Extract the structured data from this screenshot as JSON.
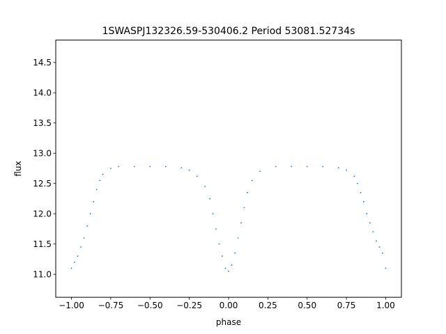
{
  "chart_data": {
    "type": "scatter",
    "title": "1SWASPJ132326.59-530406.2 Period 53081.52734s",
    "xlabel": "phase",
    "ylabel": "flux",
    "xlim": [
      -1.1,
      1.1
    ],
    "ylim": [
      10.62,
      14.87
    ],
    "x_ticks": [
      {
        "value": -1.0,
        "label": "−1.00"
      },
      {
        "value": -0.75,
        "label": "−0.75"
      },
      {
        "value": -0.5,
        "label": "−0.50"
      },
      {
        "value": -0.25,
        "label": "−0.25"
      },
      {
        "value": 0.0,
        "label": "0.00"
      },
      {
        "value": 0.25,
        "label": "0.25"
      },
      {
        "value": 0.5,
        "label": "0.50"
      },
      {
        "value": 0.75,
        "label": "0.75"
      },
      {
        "value": 1.0,
        "label": "1.00"
      }
    ],
    "y_ticks": [
      {
        "value": 11.0,
        "label": "11.0"
      },
      {
        "value": 11.5,
        "label": "11.5"
      },
      {
        "value": 12.0,
        "label": "12.0"
      },
      {
        "value": 12.5,
        "label": "12.5"
      },
      {
        "value": 13.0,
        "label": "13.0"
      },
      {
        "value": 13.5,
        "label": "13.5"
      },
      {
        "value": 14.0,
        "label": "14.0"
      },
      {
        "value": 14.5,
        "label": "14.5"
      }
    ],
    "grid": false,
    "marker_color": "#1f77b4",
    "series": [
      {
        "x": [
          -1.0,
          -0.98,
          -0.96,
          -0.94,
          -0.92,
          -0.9,
          -0.88,
          -0.86,
          -0.84,
          -0.82,
          -0.8,
          -0.75,
          -0.7,
          -0.6,
          -0.5,
          -0.4,
          -0.3,
          -0.25,
          -0.2,
          -0.15,
          -0.12,
          -0.1,
          -0.08,
          -0.06,
          -0.04,
          -0.02,
          0.0,
          0.02,
          0.04,
          0.06,
          0.08,
          0.1,
          0.12,
          0.15,
          0.2,
          0.3,
          0.4,
          0.5,
          0.6,
          0.7,
          0.75,
          0.8,
          0.82,
          0.84,
          0.86,
          0.88,
          0.9,
          0.92,
          0.94,
          0.96,
          0.98,
          1.0
        ],
        "y": [
          11.1,
          11.2,
          11.3,
          11.45,
          11.6,
          11.8,
          12.0,
          12.2,
          12.4,
          12.55,
          12.65,
          12.75,
          12.78,
          12.78,
          12.78,
          12.78,
          12.76,
          12.72,
          12.62,
          12.45,
          12.25,
          12.0,
          11.75,
          11.5,
          11.3,
          11.1,
          11.05,
          11.15,
          11.35,
          11.6,
          11.85,
          12.1,
          12.35,
          12.55,
          12.7,
          12.78,
          12.78,
          12.78,
          12.78,
          12.76,
          12.72,
          12.62,
          12.5,
          12.35,
          12.2,
          12.0,
          11.85,
          11.7,
          11.55,
          11.45,
          11.35,
          11.1
        ]
      }
    ]
  }
}
